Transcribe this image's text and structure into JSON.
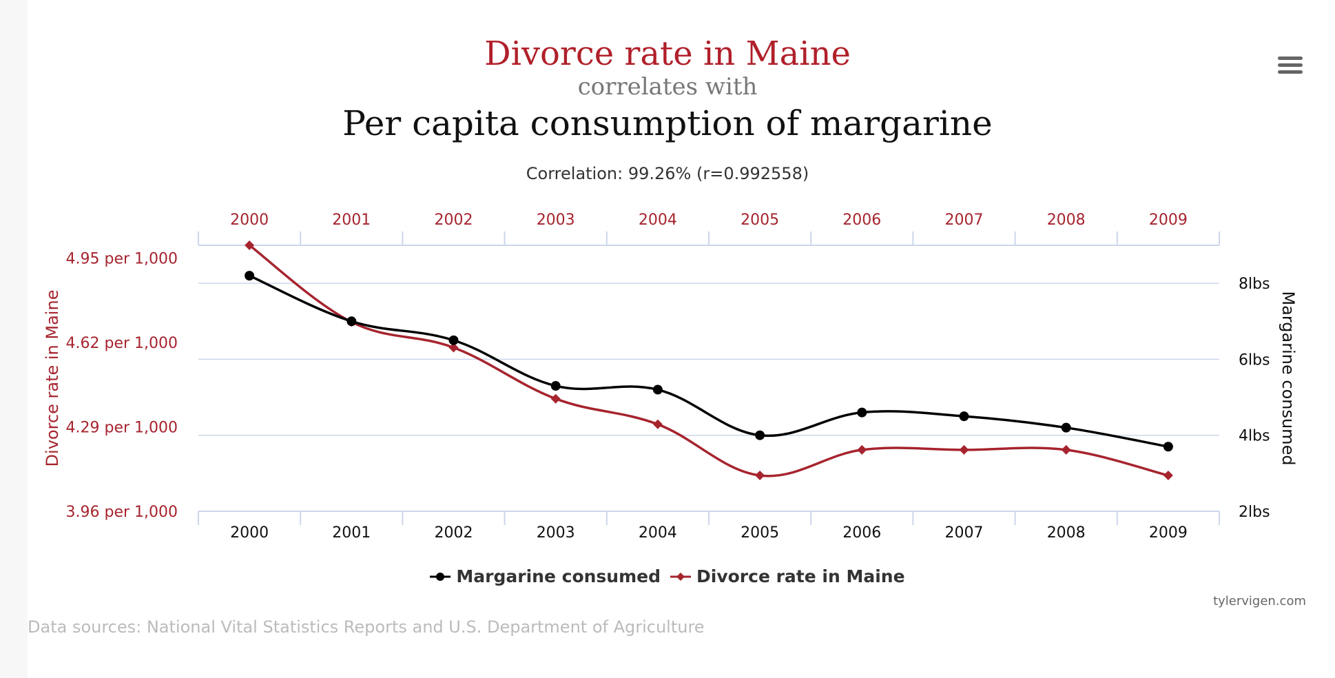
{
  "header": {
    "title_a": "Divorce rate in Maine",
    "title_mid": "correlates with",
    "title_b": "Per capita consumption of margarine",
    "correlation": "Correlation: 99.26% (r=0.992558)"
  },
  "menu": {
    "icon": "hamburger-menu-icon"
  },
  "chart_data": {
    "type": "line",
    "categories": [
      "2000",
      "2001",
      "2002",
      "2003",
      "2004",
      "2005",
      "2006",
      "2007",
      "2008",
      "2009"
    ],
    "series": [
      {
        "name": "Margarine consumed",
        "axis": "right",
        "color": "#000000",
        "marker": "circle",
        "values": [
          8.2,
          7.0,
          6.5,
          5.3,
          5.2,
          4.0,
          4.6,
          4.5,
          4.2,
          3.7
        ]
      },
      {
        "name": "Divorce rate in Maine",
        "axis": "left",
        "color": "#a6242e",
        "marker": "diamond",
        "values": [
          5.0,
          4.7,
          4.6,
          4.4,
          4.3,
          4.1,
          4.2,
          4.2,
          4.2,
          4.1
        ]
      }
    ],
    "left_axis": {
      "label": "Divorce rate in Maine",
      "ticks": [
        4.95,
        4.62,
        4.29,
        3.96
      ],
      "tick_labels": [
        "4.95 per 1,000",
        "4.62 per 1,000",
        "4.29 per 1,000",
        "3.96 per 1,000"
      ],
      "ylim": [
        3.96,
        5.0
      ]
    },
    "right_axis": {
      "label": "Margarine consumed",
      "ticks": [
        8,
        6,
        4,
        2
      ],
      "tick_labels": [
        "8lbs",
        "6lbs",
        "4lbs",
        "2lbs"
      ],
      "ylim": [
        2,
        9
      ]
    },
    "grid": true,
    "legend_position": "bottom-center"
  },
  "footer": {
    "credit": "tylervigen.com",
    "sources": "Data sources: National Vital Statistics Reports and U.S. Department of Agriculture"
  }
}
